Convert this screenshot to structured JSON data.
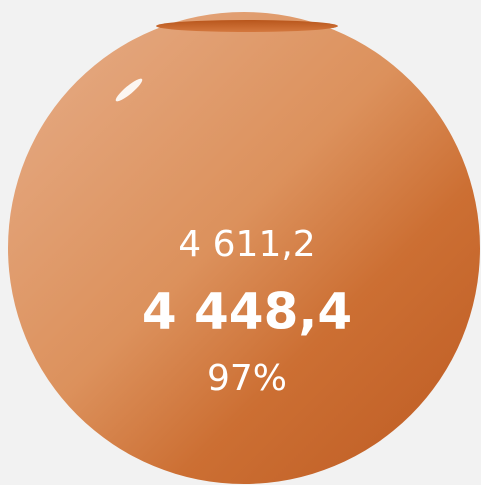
{
  "kpi": {
    "total": "4 611,2",
    "value": "4 448,4",
    "percent": "97%"
  }
}
